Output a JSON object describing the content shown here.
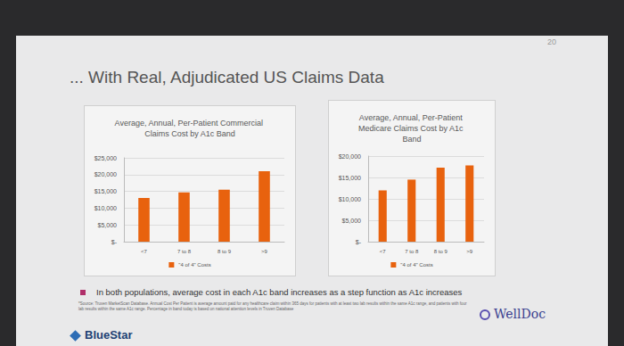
{
  "slide": {
    "page_number": "20",
    "title": "... With Real, Adjudicated US Claims Data",
    "bullet": "In both populations, average cost in each A1c band increases as a step function as A1c increases",
    "footnote": "*Source: Truven MarketScan Database. Annual Cost Per Patient is average amount paid for any healthcare claim within 365 days for patients with at least two lab results within the same A1c range, and patients with four lab results within the same A1c range. Percentage in band today is based on national attention levels in Truven Database",
    "logos": [
      "BlueStar",
      "WellDoc"
    ]
  },
  "chart_data": [
    {
      "type": "bar",
      "title": "Average, Annual, Per-Patient Commercial Claims Cost by A1c Band",
      "categories": [
        "<7",
        "7 to 8",
        "8 to 9",
        ">9"
      ],
      "series": [
        {
          "name": "\"4 of 4\" Costs",
          "color": "#e8620e",
          "values": [
            13000,
            14700,
            15500,
            21000
          ]
        }
      ],
      "ylim": [
        0,
        25000
      ],
      "yticks": [
        {
          "value": 0,
          "label": "$-"
        },
        {
          "value": 5000,
          "label": "$5,000"
        },
        {
          "value": 10000,
          "label": "$10,000"
        },
        {
          "value": 15000,
          "label": "$15,000"
        },
        {
          "value": 20000,
          "label": "$20,000"
        },
        {
          "value": 25000,
          "label": "$25,000"
        }
      ],
      "grid": true,
      "legend": "bottom"
    },
    {
      "type": "bar",
      "title": "Average, Annual, Per-Patient Medicare Claims Cost by A1c Band",
      "categories": [
        "<7",
        "7 to 8",
        "8 to 9",
        ">9"
      ],
      "series": [
        {
          "name": "\"4 of 4\" Costs",
          "color": "#e8620e",
          "values": [
            12000,
            14500,
            17300,
            17800
          ]
        }
      ],
      "ylim": [
        0,
        20000
      ],
      "yticks": [
        {
          "value": 0,
          "label": "$-"
        },
        {
          "value": 5000,
          "label": "$5,000"
        },
        {
          "value": 10000,
          "label": "$10,000"
        },
        {
          "value": 15000,
          "label": "$15,000"
        },
        {
          "value": 20000,
          "label": "$20,000"
        }
      ],
      "grid": true,
      "legend": "bottom"
    }
  ]
}
